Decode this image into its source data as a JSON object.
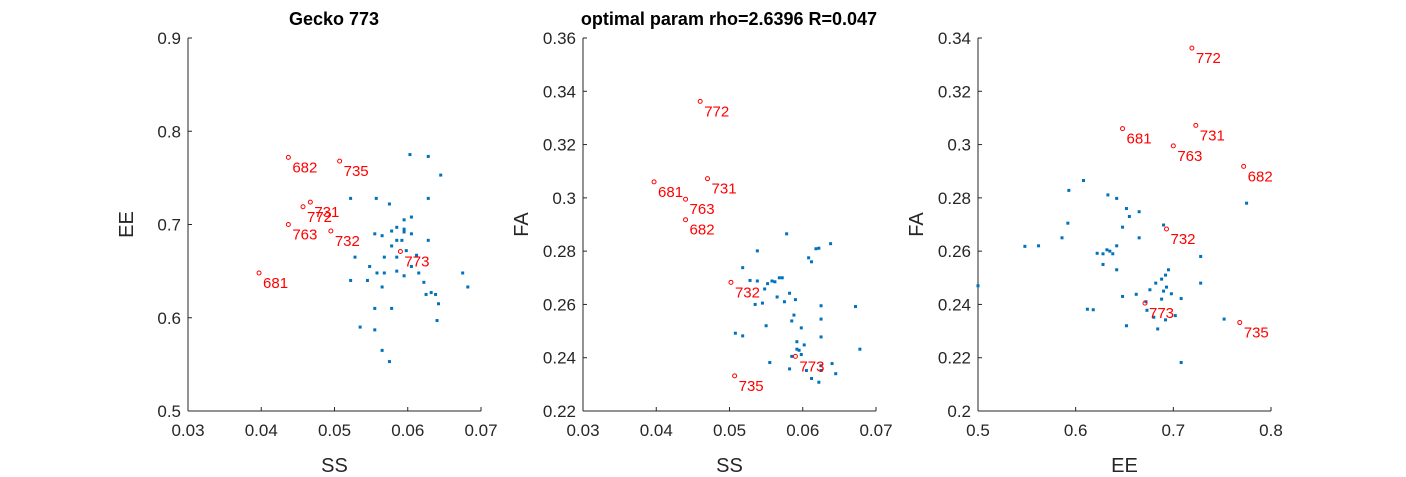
{
  "chart_data": [
    {
      "type": "scatter",
      "title": "Gecko 773",
      "xlabel": "SS",
      "ylabel": "EE",
      "xlim": [
        0.03,
        0.07
      ],
      "ylim": [
        0.5,
        0.9
      ],
      "xticks": [
        "0.03",
        "0.04",
        "0.05",
        "0.06",
        "0.07"
      ],
      "yticks": [
        "0.5",
        "0.6",
        "0.7",
        "0.8",
        "0.9"
      ],
      "colors": {
        "points": "#0072BD",
        "labeled": "#FF0000"
      },
      "series": [
        {
          "points": [
            [
              0.0603,
              0.775
            ],
            [
              0.0628,
              0.773
            ],
            [
              0.0645,
              0.753
            ],
            [
              0.0522,
              0.728
            ],
            [
              0.0557,
              0.728
            ],
            [
              0.0628,
              0.728
            ],
            [
              0.0575,
              0.722
            ],
            [
              0.0595,
              0.705
            ],
            [
              0.0605,
              0.708
            ],
            [
              0.0585,
              0.697
            ],
            [
              0.0595,
              0.695
            ],
            [
              0.0578,
              0.693
            ],
            [
              0.0595,
              0.692
            ],
            [
              0.0605,
              0.69
            ],
            [
              0.0555,
              0.69
            ],
            [
              0.0565,
              0.688
            ],
            [
              0.0585,
              0.683
            ],
            [
              0.0592,
              0.683
            ],
            [
              0.0628,
              0.683
            ],
            [
              0.0578,
              0.677
            ],
            [
              0.0598,
              0.672
            ],
            [
              0.0585,
              0.665
            ],
            [
              0.0612,
              0.667
            ],
            [
              0.0528,
              0.665
            ],
            [
              0.0568,
              0.665
            ],
            [
              0.0548,
              0.655
            ],
            [
              0.0605,
              0.655
            ],
            [
              0.0595,
              0.645
            ],
            [
              0.0585,
              0.65
            ],
            [
              0.0558,
              0.648
            ],
            [
              0.0568,
              0.648
            ],
            [
              0.0615,
              0.648
            ],
            [
              0.0622,
              0.638
            ],
            [
              0.0632,
              0.627
            ],
            [
              0.0642,
              0.615
            ],
            [
              0.0675,
              0.648
            ],
            [
              0.0682,
              0.633
            ],
            [
              0.0522,
              0.64
            ],
            [
              0.0545,
              0.64
            ],
            [
              0.0565,
              0.633
            ],
            [
              0.0625,
              0.625
            ],
            [
              0.0638,
              0.625
            ],
            [
              0.0555,
              0.61
            ],
            [
              0.0578,
              0.61
            ],
            [
              0.064,
              0.597
            ],
            [
              0.0535,
              0.59
            ],
            [
              0.0555,
              0.587
            ],
            [
              0.0565,
              0.565
            ],
            [
              0.0575,
              0.553
            ]
          ]
        },
        {
          "labeled_points": [
            {
              "label": "682",
              "x": 0.0437,
              "y": 0.772
            },
            {
              "label": "735",
              "x": 0.0507,
              "y": 0.768
            },
            {
              "label": "731",
              "x": 0.0467,
              "y": 0.724
            },
            {
              "label": "772",
              "x": 0.0457,
              "y": 0.719
            },
            {
              "label": "763",
              "x": 0.0437,
              "y": 0.7
            },
            {
              "label": "732",
              "x": 0.0495,
              "y": 0.693
            },
            {
              "label": "773",
              "x": 0.059,
              "y": 0.671
            },
            {
              "label": "681",
              "x": 0.0397,
              "y": 0.648
            }
          ]
        }
      ]
    },
    {
      "type": "scatter",
      "title": "optimal param rho=2.6396  R=0.047",
      "xlabel": "SS",
      "ylabel": "FA",
      "xlim": [
        0.03,
        0.07
      ],
      "ylim": [
        0.22,
        0.36
      ],
      "xticks": [
        "0.03",
        "0.04",
        "0.05",
        "0.06",
        "0.07"
      ],
      "yticks": [
        "0.22",
        "0.24",
        "0.26",
        "0.28",
        "0.3",
        "0.32",
        "0.34",
        "0.36"
      ],
      "colors": {
        "points": "#0072BD",
        "labeled": "#FF0000"
      },
      "series": [
        {
          "points": [
            [
              0.0578,
              0.2865
            ],
            [
              0.0638,
              0.2828
            ],
            [
              0.0622,
              0.2811
            ],
            [
              0.0618,
              0.2809
            ],
            [
              0.0538,
              0.2801
            ],
            [
              0.0608,
              0.2775
            ],
            [
              0.0612,
              0.276
            ],
            [
              0.0518,
              0.2738
            ],
            [
              0.0568,
              0.27
            ],
            [
              0.0572,
              0.27
            ],
            [
              0.0528,
              0.269
            ],
            [
              0.0538,
              0.2688
            ],
            [
              0.0558,
              0.2688
            ],
            [
              0.0562,
              0.2685
            ],
            [
              0.0552,
              0.2678
            ],
            [
              0.0548,
              0.2658
            ],
            [
              0.0582,
              0.2642
            ],
            [
              0.0565,
              0.2628
            ],
            [
              0.0575,
              0.261
            ],
            [
              0.059,
              0.2618
            ],
            [
              0.0535,
              0.26
            ],
            [
              0.0545,
              0.2605
            ],
            [
              0.0625,
              0.2595
            ],
            [
              0.0672,
              0.2592
            ],
            [
              0.0588,
              0.256
            ],
            [
              0.0625,
              0.2545
            ],
            [
              0.0585,
              0.2538
            ],
            [
              0.055,
              0.252
            ],
            [
              0.0598,
              0.2512
            ],
            [
              0.0508,
              0.2492
            ],
            [
              0.0518,
              0.2482
            ],
            [
              0.0625,
              0.2478
            ],
            [
              0.0592,
              0.246
            ],
            [
              0.0602,
              0.2448
            ],
            [
              0.0592,
              0.2432
            ],
            [
              0.0678,
              0.2432
            ],
            [
              0.0595,
              0.2428
            ],
            [
              0.0598,
              0.2412
            ],
            [
              0.0585,
              0.2405
            ],
            [
              0.0555,
              0.2382
            ],
            [
              0.064,
              0.2378
            ],
            [
              0.0625,
              0.237
            ],
            [
              0.0582,
              0.2358
            ],
            [
              0.0605,
              0.2352
            ],
            [
              0.0645,
              0.234
            ],
            [
              0.0625,
              0.2352
            ],
            [
              0.0612,
              0.2322
            ],
            [
              0.0622,
              0.2308
            ]
          ]
        },
        {
          "labeled_points": [
            {
              "label": "772",
              "x": 0.046,
              "y": 0.3362
            },
            {
              "label": "731",
              "x": 0.047,
              "y": 0.3072
            },
            {
              "label": "681",
              "x": 0.0397,
              "y": 0.306
            },
            {
              "label": "763",
              "x": 0.044,
              "y": 0.2995
            },
            {
              "label": "682",
              "x": 0.044,
              "y": 0.2918
            },
            {
              "label": "732",
              "x": 0.0502,
              "y": 0.2683
            },
            {
              "label": "773",
              "x": 0.059,
              "y": 0.2405
            },
            {
              "label": "735",
              "x": 0.0507,
              "y": 0.2332
            }
          ]
        }
      ]
    },
    {
      "type": "scatter",
      "title": "",
      "xlabel": "EE",
      "ylabel": "FA",
      "xlim": [
        0.5,
        0.8
      ],
      "ylim": [
        0.2,
        0.34
      ],
      "xticks": [
        "0.5",
        "0.6",
        "0.7",
        "0.8"
      ],
      "yticks": [
        "0.2",
        "0.22",
        "0.24",
        "0.26",
        "0.28",
        "0.3",
        "0.32",
        "0.34"
      ],
      "colors": {
        "points": "#0072BD",
        "labeled": "#FF0000"
      },
      "series": [
        {
          "points": [
            [
              0.608,
              0.2865
            ],
            [
              0.593,
              0.2828
            ],
            [
              0.633,
              0.2811
            ],
            [
              0.642,
              0.2798
            ],
            [
              0.775,
              0.278
            ],
            [
              0.652,
              0.276
            ],
            [
              0.665,
              0.2748
            ],
            [
              0.655,
              0.273
            ],
            [
              0.592,
              0.2705
            ],
            [
              0.69,
              0.2698
            ],
            [
              0.648,
              0.269
            ],
            [
              0.665,
              0.265
            ],
            [
              0.586,
              0.265
            ],
            [
              0.548,
              0.2618
            ],
            [
              0.562,
              0.262
            ],
            [
              0.642,
              0.262
            ],
            [
              0.632,
              0.2605
            ],
            [
              0.635,
              0.26
            ],
            [
              0.622,
              0.2592
            ],
            [
              0.628,
              0.259
            ],
            [
              0.638,
              0.259
            ],
            [
              0.728,
              0.258
            ],
            [
              0.628,
              0.255
            ],
            [
              0.695,
              0.253
            ],
            [
              0.642,
              0.253
            ],
            [
              0.692,
              0.251
            ],
            [
              0.688,
              0.2495
            ],
            [
              0.682,
              0.248
            ],
            [
              0.728,
              0.248
            ],
            [
              0.693,
              0.2465
            ],
            [
              0.5,
              0.247
            ],
            [
              0.676,
              0.2455
            ],
            [
              0.69,
              0.245
            ],
            [
              0.698,
              0.244
            ],
            [
              0.662,
              0.2438
            ],
            [
              0.648,
              0.243
            ],
            [
              0.708,
              0.2422
            ],
            [
              0.688,
              0.242
            ],
            [
              0.672,
              0.241
            ],
            [
              0.612,
              0.2382
            ],
            [
              0.618,
              0.238
            ],
            [
              0.673,
              0.2378
            ],
            [
              0.702,
              0.2358
            ],
            [
              0.68,
              0.2352
            ],
            [
              0.752,
              0.2345
            ],
            [
              0.692,
              0.2342
            ],
            [
              0.652,
              0.232
            ],
            [
              0.684,
              0.2308
            ],
            [
              0.708,
              0.2182
            ]
          ]
        },
        {
          "labeled_points": [
            {
              "label": "772",
              "x": 0.719,
              "y": 0.3362
            },
            {
              "label": "681",
              "x": 0.648,
              "y": 0.306
            },
            {
              "label": "731",
              "x": 0.723,
              "y": 0.3072
            },
            {
              "label": "763",
              "x": 0.7,
              "y": 0.2995
            },
            {
              "label": "682",
              "x": 0.772,
              "y": 0.2918
            },
            {
              "label": "732",
              "x": 0.693,
              "y": 0.2683
            },
            {
              "label": "773",
              "x": 0.671,
              "y": 0.2405
            },
            {
              "label": "735",
              "x": 0.768,
              "y": 0.2332
            }
          ]
        }
      ]
    }
  ]
}
